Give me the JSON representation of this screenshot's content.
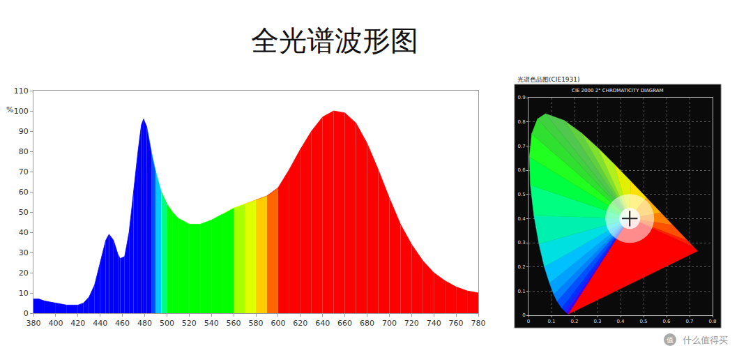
{
  "chart_data": [
    {
      "type": "area",
      "title": "全光谱波形图",
      "ylabel": "%",
      "x": [
        380,
        385,
        390,
        400,
        410,
        420,
        425,
        430,
        435,
        440,
        445,
        448,
        452,
        456,
        458,
        462,
        466,
        470,
        474,
        477,
        479,
        482,
        486,
        490,
        495,
        500,
        505,
        510,
        520,
        530,
        540,
        550,
        560,
        570,
        580,
        590,
        600,
        610,
        620,
        630,
        640,
        650,
        660,
        670,
        680,
        690,
        700,
        710,
        720,
        730,
        740,
        750,
        760,
        770,
        780
      ],
      "values": [
        7,
        7,
        6,
        5,
        4,
        4,
        5,
        8,
        14,
        25,
        36,
        39,
        36,
        29,
        27,
        28,
        40,
        60,
        80,
        93,
        96,
        92,
        80,
        70,
        60,
        54,
        50,
        47,
        44,
        44,
        46,
        49,
        52,
        54,
        56,
        58,
        62,
        71,
        81,
        90,
        97,
        100,
        99,
        94,
        84,
        71,
        57,
        44,
        34,
        26,
        20,
        16,
        13,
        11,
        10
      ],
      "colors": [
        "#0000ff",
        "#0000ff",
        "#0000ff",
        "#0000ff",
        "#0000ff",
        "#0000ff",
        "#0000ff",
        "#0000ff",
        "#0000ff",
        "#0000ff",
        "#0000ff",
        "#0000ff",
        "#0000ff",
        "#0000ff",
        "#0000ff",
        "#0000ff",
        "#0000ff",
        "#0000ff",
        "#0000ff",
        "#0000ff",
        "#0000ff",
        "#0000ff",
        "#0050ff",
        "#00c8ff",
        "#00ff80",
        "#00ff00",
        "#00ff00",
        "#00ff00",
        "#00ff00",
        "#00ff00",
        "#00ff00",
        "#00ff00",
        "#aaff00",
        "#e0ff00",
        "#ffcc00",
        "#ff6600",
        "#ff0000",
        "#ff0000",
        "#ff0000",
        "#ff0000",
        "#ff0000",
        "#ff0000",
        "#ff0000",
        "#ff0000",
        "#ff0000",
        "#ff0000",
        "#ff0000",
        "#ff0000",
        "#ff0000",
        "#ff0000",
        "#ff0000",
        "#ff0000",
        "#ff0000",
        "#ff0000",
        "#ff0000"
      ],
      "xlim": [
        380,
        780
      ],
      "xticks": [
        380,
        400,
        420,
        440,
        460,
        480,
        500,
        520,
        540,
        560,
        580,
        600,
        620,
        640,
        660,
        680,
        700,
        720,
        740,
        760,
        780
      ],
      "ylim": [
        0,
        110
      ],
      "yticks": [
        0,
        10,
        20,
        30,
        40,
        50,
        60,
        70,
        80,
        90,
        100,
        110
      ],
      "grid": false
    },
    {
      "type": "chromaticity",
      "title": "光谱色品图(CIE1931)",
      "subtitle": "CIE 2000 2° CHROMATICITY DIAGRAM",
      "x": [
        0.1741,
        0.1714,
        0.1644,
        0.1566,
        0.144,
        0.1241,
        0.1096,
        0.0913,
        0.0687,
        0.0454,
        0.0235,
        0.0082,
        0.0039,
        0.0139,
        0.0389,
        0.0743,
        0.1547,
        0.2296,
        0.3016,
        0.3731,
        0.4441,
        0.5125,
        0.5752,
        0.627,
        0.6915,
        0.719,
        0.7347
      ],
      "values": [
        0.005,
        0.0051,
        0.0109,
        0.0177,
        0.0297,
        0.0578,
        0.0868,
        0.1327,
        0.2007,
        0.295,
        0.4127,
        0.5384,
        0.6548,
        0.7502,
        0.812,
        0.8338,
        0.8059,
        0.7543,
        0.6923,
        0.6245,
        0.5547,
        0.4866,
        0.4242,
        0.3725,
        0.3083,
        0.2809,
        0.2653
      ],
      "colors": [
        "#5a00c8",
        "#4000ff",
        "#2020ff",
        "#0030ff",
        "#0050ff",
        "#0080ff",
        "#00a0ff",
        "#00c0ff",
        "#00e0e0",
        "#00f0b0",
        "#00ff80",
        "#00ff40",
        "#20ff20",
        "#30e030",
        "#40d040",
        "#50c850",
        "#60d040",
        "#80e030",
        "#b0f020",
        "#e0f000",
        "#ffe000",
        "#ffb000",
        "#ff8000",
        "#ff5000",
        "#ff2000",
        "#ff0000",
        "#ff0000"
      ],
      "point": {
        "x": 0.44,
        "y": 0.4
      },
      "marker": "cross",
      "xlim": [
        0,
        0.8
      ],
      "xticks": [
        0,
        0.1,
        0.2,
        0.3,
        0.4,
        0.5,
        0.6,
        0.7,
        0.8
      ],
      "ylim": [
        0,
        0.9
      ],
      "yticks": [
        0,
        0.1,
        0.2,
        0.3,
        0.4,
        0.5,
        0.6,
        0.7,
        0.8,
        0.9
      ],
      "grid": true
    }
  ],
  "watermark": {
    "icon": "值",
    "text": "什么值得买"
  }
}
